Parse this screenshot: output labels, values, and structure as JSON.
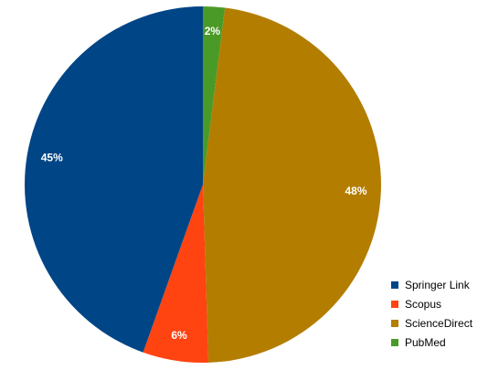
{
  "chart_data": {
    "type": "pie",
    "title": "",
    "start_angle_deg": 0,
    "direction": "clockwise",
    "legend_position": "bottom-right",
    "slices": [
      {
        "label": "PubMed",
        "value": 2,
        "value_label": "2%",
        "color": "#4a9a27"
      },
      {
        "label": "ScienceDirect",
        "value": 48,
        "value_label": "48%",
        "color": "#b37d00"
      },
      {
        "label": "Scopus",
        "value": 6,
        "value_label": "6%",
        "color": "#ff4412"
      },
      {
        "label": "Springer Link",
        "value": 45,
        "value_label": "45%",
        "color": "#004586"
      }
    ]
  },
  "legend": {
    "items": [
      {
        "label": "Springer Link",
        "color": "#004586"
      },
      {
        "label": "Scopus",
        "color": "#ff4412"
      },
      {
        "label": "ScienceDirect",
        "color": "#b37d00"
      },
      {
        "label": "PubMed",
        "color": "#4a9a27"
      }
    ]
  }
}
